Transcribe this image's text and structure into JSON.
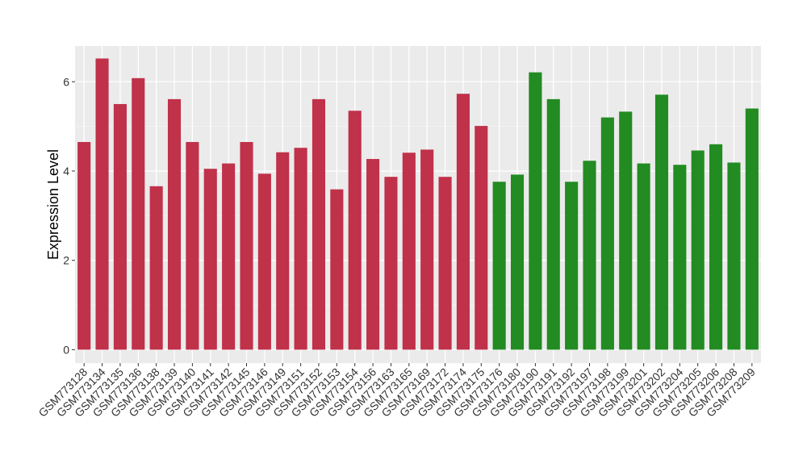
{
  "chart_data": {
    "type": "bar",
    "title": "",
    "xlabel": "",
    "ylabel": "Expression Level",
    "ylim": [
      -0.3,
      6.8
    ],
    "yticks": [
      0,
      2,
      4,
      6
    ],
    "grid": true,
    "legend": "none",
    "background": "#ebebeb",
    "categories": [
      "GSM773128",
      "GSM773134",
      "GSM773135",
      "GSM773136",
      "GSM773138",
      "GSM773139",
      "GSM773140",
      "GSM773141",
      "GSM773142",
      "GSM773145",
      "GSM773146",
      "GSM773149",
      "GSM773151",
      "GSM773152",
      "GSM773153",
      "GSM773154",
      "GSM773156",
      "GSM773163",
      "GSM773165",
      "GSM773169",
      "GSM773172",
      "GSM773174",
      "GSM773175",
      "GSM773176",
      "GSM773180",
      "GSM773190",
      "GSM773191",
      "GSM773192",
      "GSM773197",
      "GSM773198",
      "GSM773199",
      "GSM773201",
      "GSM773202",
      "GSM773204",
      "GSM773205",
      "GSM773206",
      "GSM773208",
      "GSM773209"
    ],
    "values": [
      4.65,
      6.52,
      5.5,
      6.08,
      3.66,
      5.61,
      4.65,
      4.05,
      4.17,
      4.65,
      3.94,
      4.42,
      4.52,
      5.61,
      3.59,
      5.35,
      4.27,
      3.87,
      4.41,
      4.48,
      3.87,
      5.73,
      5.01,
      3.76,
      3.92,
      6.21,
      5.61,
      3.76,
      4.23,
      5.2,
      5.33,
      4.17,
      5.71,
      4.14,
      4.46,
      4.6,
      4.19,
      5.4
    ],
    "groups": [
      "a",
      "a",
      "a",
      "a",
      "a",
      "a",
      "a",
      "a",
      "a",
      "a",
      "a",
      "a",
      "a",
      "a",
      "a",
      "a",
      "a",
      "a",
      "a",
      "a",
      "a",
      "a",
      "a",
      "b",
      "b",
      "b",
      "b",
      "b",
      "b",
      "b",
      "b",
      "b",
      "b",
      "b",
      "b",
      "b",
      "b",
      "b"
    ],
    "group_colors": {
      "a": "#c0314a",
      "b": "#228b22"
    }
  }
}
